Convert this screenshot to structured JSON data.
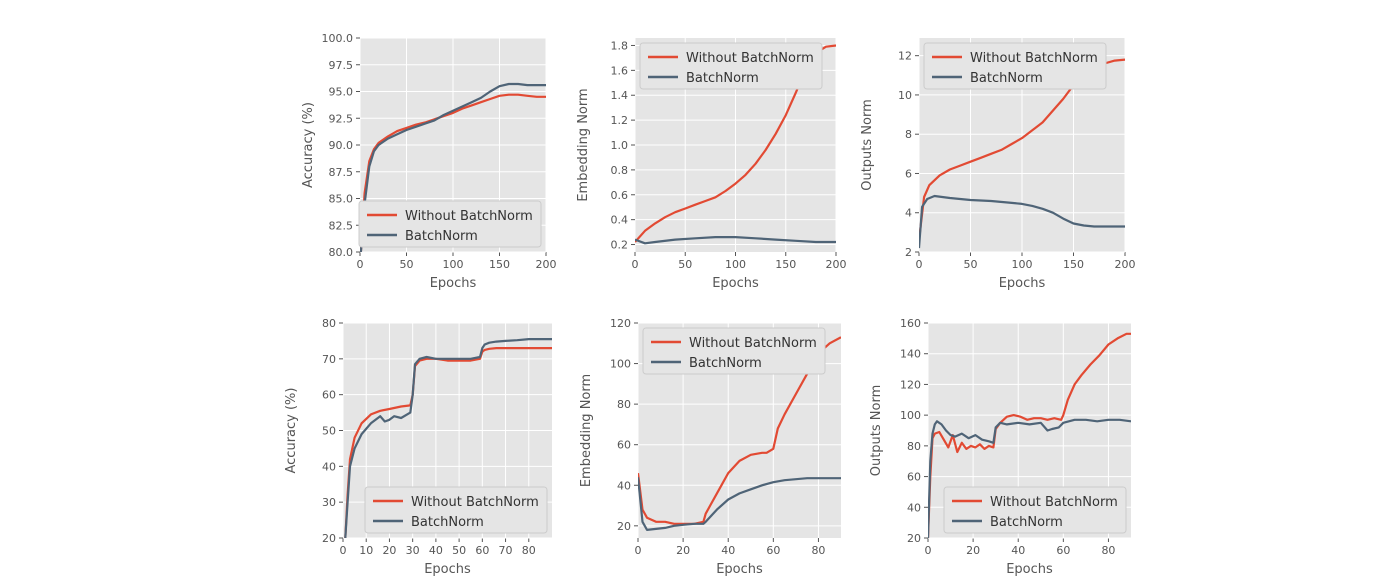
{
  "colors": {
    "without": "#e24a33",
    "batchnorm": "#4f6477"
  },
  "chart_data": [
    {
      "type": "line",
      "xlabel": "Epochs",
      "ylabel": "Accuracy (%)",
      "xlim": [
        0,
        200
      ],
      "ylim": [
        80,
        100
      ],
      "grid": true,
      "legend": "lower-right",
      "xticks": [
        "0",
        "50",
        "100",
        "150",
        "200"
      ],
      "yticks": [
        "80.0",
        "82.5",
        "85.0",
        "87.5",
        "90.0",
        "92.5",
        "95.0",
        "97.5",
        "100.0"
      ],
      "series": [
        {
          "name": "Without BatchNorm",
          "x": [
            1,
            5,
            10,
            15,
            20,
            30,
            40,
            50,
            60,
            70,
            80,
            90,
            100,
            110,
            120,
            130,
            140,
            150,
            160,
            170,
            180,
            190,
            200
          ],
          "y": [
            80,
            85.5,
            88.5,
            89.6,
            90.2,
            90.8,
            91.3,
            91.6,
            91.9,
            92.1,
            92.4,
            92.7,
            93.0,
            93.4,
            93.7,
            94.0,
            94.3,
            94.6,
            94.7,
            94.7,
            94.6,
            94.5,
            94.5
          ]
        },
        {
          "name": "BatchNorm",
          "x": [
            1,
            5,
            10,
            15,
            20,
            30,
            40,
            50,
            60,
            70,
            80,
            90,
            100,
            110,
            120,
            130,
            140,
            150,
            160,
            170,
            180,
            190,
            200
          ],
          "y": [
            80,
            84.5,
            88.0,
            89.4,
            90.0,
            90.6,
            91.0,
            91.4,
            91.7,
            92.0,
            92.3,
            92.8,
            93.2,
            93.6,
            94.0,
            94.4,
            95.0,
            95.5,
            95.7,
            95.7,
            95.6,
            95.6,
            95.6
          ]
        }
      ]
    },
    {
      "type": "line",
      "xlabel": "Epochs",
      "ylabel": "Embedding Norm",
      "xlim": [
        0,
        200
      ],
      "ylim": [
        0.14,
        1.86
      ],
      "grid": true,
      "legend": "top-left",
      "xticks": [
        "0",
        "50",
        "100",
        "150",
        "200"
      ],
      "yticks": [
        "0.2",
        "0.4",
        "0.6",
        "0.8",
        "1.0",
        "1.2",
        "1.4",
        "1.6",
        "1.8"
      ],
      "series": [
        {
          "name": "Without BatchNorm",
          "x": [
            0,
            10,
            20,
            30,
            40,
            50,
            60,
            70,
            80,
            90,
            100,
            110,
            120,
            130,
            140,
            150,
            160,
            170,
            180,
            190,
            200
          ],
          "y": [
            0.22,
            0.31,
            0.37,
            0.42,
            0.46,
            0.49,
            0.52,
            0.55,
            0.58,
            0.63,
            0.69,
            0.76,
            0.85,
            0.96,
            1.09,
            1.24,
            1.42,
            1.61,
            1.74,
            1.79,
            1.8
          ]
        },
        {
          "name": "BatchNorm",
          "x": [
            0,
            10,
            20,
            40,
            60,
            80,
            100,
            120,
            140,
            160,
            180,
            200
          ],
          "y": [
            0.24,
            0.21,
            0.22,
            0.24,
            0.25,
            0.26,
            0.26,
            0.25,
            0.24,
            0.23,
            0.22,
            0.22
          ]
        }
      ]
    },
    {
      "type": "line",
      "xlabel": "Epochs",
      "ylabel": "Outputs Norm",
      "xlim": [
        0,
        200
      ],
      "ylim": [
        2,
        12.9
      ],
      "grid": true,
      "legend": "top-left",
      "xticks": [
        "0",
        "50",
        "100",
        "150",
        "200"
      ],
      "yticks": [
        "2",
        "4",
        "6",
        "8",
        "10",
        "12"
      ],
      "series": [
        {
          "name": "Without BatchNorm",
          "x": [
            0,
            5,
            10,
            20,
            30,
            40,
            50,
            60,
            70,
            80,
            90,
            100,
            110,
            120,
            130,
            140,
            150,
            160,
            170,
            180,
            190,
            200
          ],
          "y": [
            2.6,
            4.8,
            5.4,
            5.9,
            6.2,
            6.4,
            6.6,
            6.8,
            7.0,
            7.2,
            7.5,
            7.8,
            8.2,
            8.6,
            9.2,
            9.8,
            10.5,
            11.0,
            11.3,
            11.6,
            11.75,
            11.8
          ]
        },
        {
          "name": "BatchNorm",
          "x": [
            0,
            3,
            8,
            15,
            30,
            50,
            70,
            90,
            100,
            110,
            120,
            130,
            140,
            150,
            160,
            170,
            180,
            190,
            200
          ],
          "y": [
            2.2,
            4.3,
            4.7,
            4.85,
            4.75,
            4.65,
            4.6,
            4.5,
            4.45,
            4.35,
            4.2,
            4.0,
            3.7,
            3.45,
            3.35,
            3.3,
            3.3,
            3.3,
            3.3
          ]
        }
      ]
    },
    {
      "type": "line",
      "xlabel": "Epochs",
      "ylabel": "Accuracy (%)",
      "xlim": [
        0,
        90
      ],
      "ylim": [
        20,
        80
      ],
      "grid": true,
      "legend": "lower-right",
      "xticks": [
        "0",
        "10",
        "20",
        "30",
        "40",
        "50",
        "60",
        "70",
        "80"
      ],
      "yticks": [
        "20",
        "30",
        "40",
        "50",
        "60",
        "70",
        "80"
      ],
      "series": [
        {
          "name": "Without BatchNorm",
          "x": [
            1,
            2,
            3,
            5,
            8,
            12,
            16,
            20,
            25,
            29,
            30,
            31,
            33,
            36,
            40,
            45,
            50,
            55,
            59,
            60,
            61,
            63,
            66,
            70,
            75,
            80,
            85,
            90
          ],
          "y": [
            20,
            32,
            42,
            48,
            52,
            54.5,
            55.5,
            56,
            56.7,
            57,
            60,
            68,
            69.5,
            70,
            70,
            69.5,
            69.5,
            69.5,
            70,
            72,
            72.5,
            72.8,
            73,
            73,
            73,
            73,
            73,
            73
          ]
        },
        {
          "name": "BatchNorm",
          "x": [
            1,
            2,
            3,
            5,
            8,
            12,
            16,
            18,
            20,
            22,
            25,
            29,
            30,
            31,
            33,
            36,
            40,
            45,
            50,
            55,
            59,
            60,
            61,
            63,
            66,
            70,
            75,
            80,
            85,
            90
          ],
          "y": [
            20,
            30,
            40,
            45,
            49,
            52,
            54,
            52.5,
            53,
            54,
            53.5,
            55,
            60,
            68.5,
            70,
            70.5,
            70,
            70,
            70,
            70,
            70.5,
            73,
            74,
            74.5,
            74.8,
            75,
            75.2,
            75.5,
            75.5,
            75.5
          ]
        }
      ]
    },
    {
      "type": "line",
      "xlabel": "Epochs",
      "ylabel": "Embedding Norm",
      "xlim": [
        0,
        90
      ],
      "ylim": [
        14,
        120
      ],
      "grid": true,
      "legend": "top-left",
      "xticks": [
        "0",
        "20",
        "40",
        "60",
        "80"
      ],
      "yticks": [
        "20",
        "40",
        "60",
        "80",
        "100",
        "120"
      ],
      "series": [
        {
          "name": "Without BatchNorm",
          "x": [
            0,
            2,
            4,
            8,
            12,
            16,
            20,
            25,
            29,
            30,
            32,
            36,
            40,
            45,
            50,
            55,
            57,
            60,
            62,
            65,
            70,
            75,
            80,
            85,
            90
          ],
          "y": [
            46,
            28,
            24,
            22,
            22,
            21,
            21,
            21,
            22,
            26,
            30,
            38,
            46,
            52,
            55,
            56,
            56,
            58,
            68,
            75,
            85,
            95,
            105,
            110,
            113
          ]
        },
        {
          "name": "BatchNorm",
          "x": [
            0,
            2,
            4,
            8,
            12,
            16,
            20,
            25,
            29,
            30,
            35,
            40,
            45,
            50,
            55,
            60,
            65,
            70,
            75,
            80,
            85,
            90
          ],
          "y": [
            44,
            22,
            18,
            18.5,
            19,
            20,
            20.5,
            21,
            21,
            22,
            28,
            33,
            36,
            38,
            40,
            41.5,
            42.5,
            43,
            43.5,
            43.5,
            43.5,
            43.5
          ]
        }
      ]
    },
    {
      "type": "line",
      "xlabel": "Epochs",
      "ylabel": "Outputs Norm",
      "xlim": [
        0,
        90
      ],
      "ylim": [
        20,
        160
      ],
      "grid": true,
      "legend": "bottom-right",
      "xticks": [
        "0",
        "20",
        "40",
        "60",
        "80"
      ],
      "yticks": [
        "20",
        "40",
        "60",
        "80",
        "100",
        "120",
        "140",
        "160"
      ],
      "series": [
        {
          "name": "Without BatchNorm",
          "x": [
            0,
            1,
            2,
            3,
            5,
            7,
            9,
            11,
            13,
            15,
            17,
            19,
            21,
            23,
            25,
            27,
            29,
            30,
            32,
            35,
            38,
            41,
            44,
            47,
            50,
            53,
            56,
            59,
            60,
            62,
            65,
            68,
            72,
            76,
            80,
            84,
            88,
            90
          ],
          "y": [
            20,
            60,
            85,
            88,
            89,
            84,
            79,
            87,
            76,
            82,
            78,
            80,
            79,
            81,
            78,
            80,
            79,
            91,
            95,
            99,
            100,
            99,
            97,
            98,
            98,
            97,
            98,
            97,
            100,
            110,
            120,
            126,
            133,
            139,
            146,
            150,
            153,
            153
          ]
        },
        {
          "name": "BatchNorm",
          "x": [
            0,
            1,
            2,
            3,
            4,
            6,
            8,
            10,
            12,
            15,
            18,
            21,
            24,
            27,
            29,
            30,
            32,
            35,
            40,
            45,
            50,
            53,
            55,
            58,
            60,
            65,
            70,
            75,
            80,
            85,
            90
          ],
          "y": [
            20,
            70,
            88,
            94,
            96,
            94,
            90,
            87,
            86,
            88,
            85,
            87,
            84,
            83,
            82,
            92,
            95,
            94,
            95,
            94,
            95,
            90,
            91,
            92,
            95,
            97,
            97,
            96,
            97,
            97,
            96
          ]
        }
      ]
    }
  ]
}
